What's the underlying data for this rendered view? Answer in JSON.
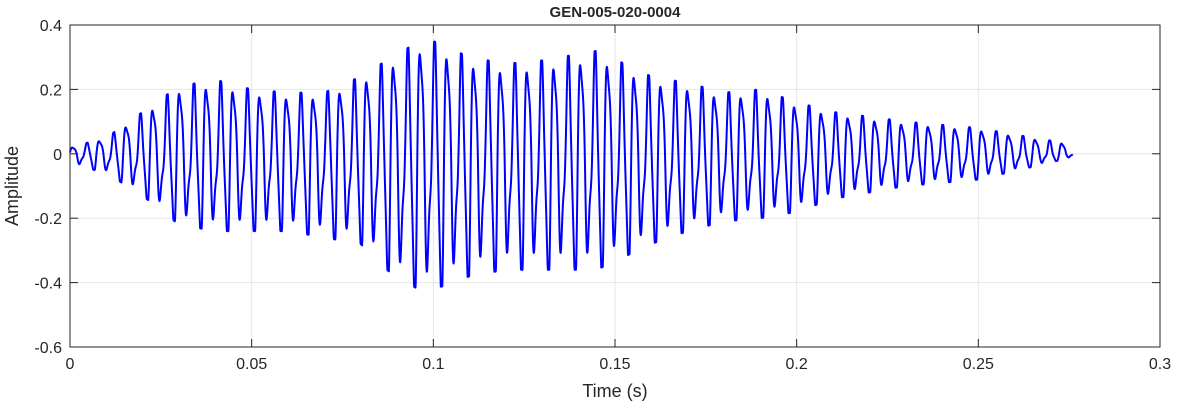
{
  "chart_data": {
    "type": "line",
    "title": "GEN-005-020-0004",
    "xlabel": "Time (s)",
    "ylabel": "Amplitude",
    "xlim": [
      0,
      0.3
    ],
    "ylim": [
      -0.6,
      0.4
    ],
    "xticks": [
      0,
      0.05,
      0.1,
      0.15,
      0.2,
      0.25,
      0.3
    ],
    "xtick_labels": [
      "0",
      "0.05",
      "0.1",
      "0.15",
      "0.2",
      "0.25",
      "0.3"
    ],
    "yticks": [
      -0.6,
      -0.4,
      -0.2,
      0,
      0.2,
      0.4
    ],
    "ytick_labels": [
      "-0.6",
      "-0.4",
      "-0.2",
      "0",
      "0.2",
      "0.4"
    ],
    "grid": true,
    "line_color": "#0000ff",
    "series": [
      {
        "values_description": "",
        "x_start": 0,
        "x_end": 0.276,
        "envelope": [
          [
            0.0,
            0.02,
            -0.03
          ],
          [
            0.01,
            0.05,
            -0.06
          ],
          [
            0.02,
            0.13,
            -0.13
          ],
          [
            0.03,
            0.21,
            -0.22
          ],
          [
            0.04,
            0.23,
            -0.24
          ],
          [
            0.05,
            0.2,
            -0.24
          ],
          [
            0.06,
            0.19,
            -0.24
          ],
          [
            0.07,
            0.19,
            -0.26
          ],
          [
            0.08,
            0.24,
            -0.28
          ],
          [
            0.09,
            0.31,
            -0.39
          ],
          [
            0.098,
            0.36,
            -0.43
          ],
          [
            0.11,
            0.3,
            -0.38
          ],
          [
            0.12,
            0.28,
            -0.36
          ],
          [
            0.13,
            0.29,
            -0.36
          ],
          [
            0.145,
            0.32,
            -0.36
          ],
          [
            0.16,
            0.24,
            -0.28
          ],
          [
            0.17,
            0.22,
            -0.24
          ],
          [
            0.18,
            0.19,
            -0.21
          ],
          [
            0.19,
            0.2,
            -0.2
          ],
          [
            0.2,
            0.16,
            -0.18
          ],
          [
            0.21,
            0.13,
            -0.14
          ],
          [
            0.23,
            0.1,
            -0.1
          ],
          [
            0.25,
            0.08,
            -0.08
          ],
          [
            0.265,
            0.05,
            -0.04
          ],
          [
            0.276,
            0.03,
            -0.01
          ]
        ],
        "period": 0.00368
      }
    ]
  }
}
